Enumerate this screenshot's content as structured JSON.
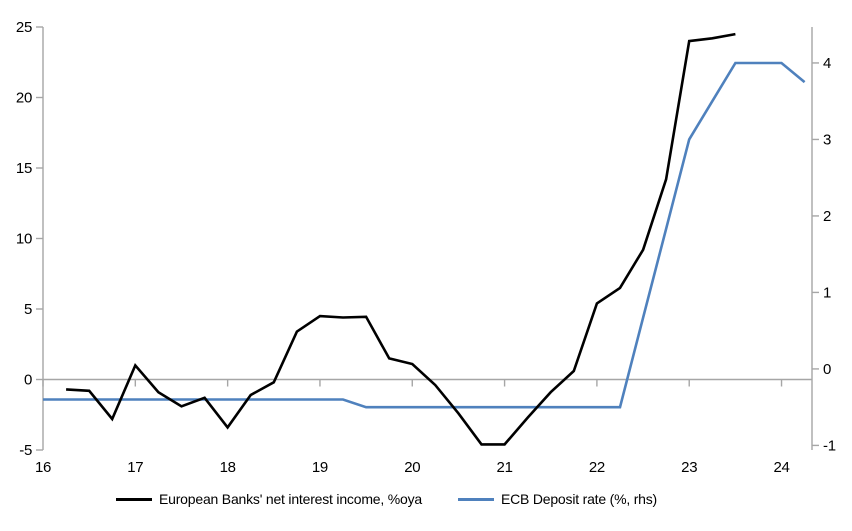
{
  "chart_data": {
    "type": "line",
    "title": "",
    "xlabel": "",
    "ylabel_left": "",
    "ylabel_right": "",
    "grid": "zero-line-only",
    "legend_position": "bottom",
    "series": [
      {
        "name": "European Banks' net interest income, %oya",
        "axis": "left",
        "color": "#000000",
        "x": [
          16.25,
          16.5,
          16.75,
          17.0,
          17.25,
          17.5,
          17.75,
          18.0,
          18.25,
          18.5,
          18.75,
          19.0,
          19.25,
          19.5,
          19.75,
          20.0,
          20.25,
          20.5,
          20.75,
          21.0,
          21.25,
          21.5,
          21.75,
          22.0,
          22.25,
          22.5,
          22.75,
          23.0,
          23.25,
          23.5
        ],
        "y": [
          -0.7,
          -0.8,
          -2.8,
          1.0,
          -0.9,
          -1.9,
          -1.3,
          -3.4,
          -1.1,
          -0.2,
          3.4,
          4.5,
          4.4,
          4.45,
          1.5,
          1.1,
          -0.4,
          -2.4,
          -4.6,
          -4.6,
          -2.7,
          -0.9,
          0.6,
          5.4,
          6.5,
          9.2,
          14.2,
          24.0,
          24.2,
          24.5
        ]
      },
      {
        "name": "ECB Deposit rate (%, rhs)",
        "axis": "right",
        "color": "#4f81bd",
        "x": [
          16.0,
          16.25,
          16.5,
          16.75,
          17.0,
          17.25,
          17.5,
          17.75,
          18.0,
          18.25,
          18.5,
          18.75,
          19.0,
          19.25,
          19.5,
          19.75,
          20.0,
          20.25,
          20.5,
          20.75,
          21.0,
          21.25,
          21.5,
          21.75,
          22.0,
          22.25,
          22.5,
          22.75,
          23.0,
          23.25,
          23.5,
          23.75,
          24.0,
          24.25
        ],
        "y": [
          -0.4,
          -0.4,
          -0.4,
          -0.4,
          -0.4,
          -0.4,
          -0.4,
          -0.4,
          -0.4,
          -0.4,
          -0.4,
          -0.4,
          -0.4,
          -0.4,
          -0.5,
          -0.5,
          -0.5,
          -0.5,
          -0.5,
          -0.5,
          -0.5,
          -0.5,
          -0.5,
          -0.5,
          -0.5,
          -0.5,
          0.67,
          1.83,
          3.0,
          3.5,
          4.0,
          4.0,
          4.0,
          3.75
        ]
      }
    ],
    "x_axis": {
      "range": [
        16,
        24.33
      ],
      "ticks": [
        16,
        17,
        18,
        19,
        20,
        21,
        22,
        23,
        24
      ],
      "labels": [
        "16",
        "17",
        "18",
        "19",
        "20",
        "21",
        "22",
        "23",
        "24"
      ]
    },
    "y_axis_left": {
      "range": [
        -5,
        25
      ],
      "ticks": [
        -5,
        0,
        5,
        10,
        15,
        20,
        25
      ],
      "labels": [
        "-5",
        "0",
        "5",
        "10",
        "15",
        "20",
        "25"
      ]
    },
    "y_axis_right": {
      "range": [
        -1.06,
        4.47
      ],
      "ticks": [
        -1,
        0,
        1,
        2,
        3,
        4
      ],
      "labels": [
        "-1",
        "0",
        "1",
        "2",
        "3",
        "4"
      ]
    },
    "colors": {
      "axis": "#a6a6a6",
      "zero_line": "#a6a6a6",
      "tick_label": "#000000",
      "background": "#ffffff"
    }
  },
  "legend": {
    "items": [
      {
        "label": "European Banks' net interest income, %oya"
      },
      {
        "label": "ECB Deposit rate (%, rhs)"
      }
    ]
  }
}
